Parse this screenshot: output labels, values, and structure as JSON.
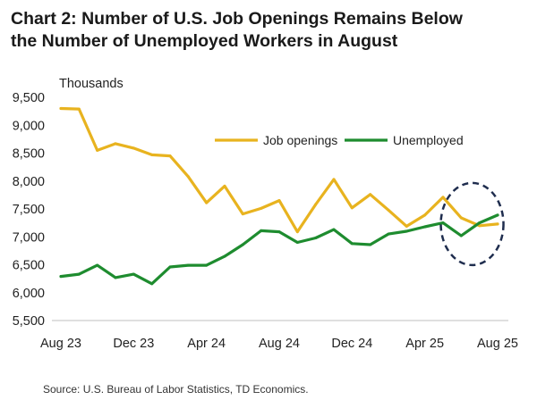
{
  "title": {
    "line1": "Chart 2: Number of U.S. Job Openings Remains Below",
    "line2": "the Number of Unemployed Workers in August"
  },
  "source": "Source: U.S. Bureau of Labor Statistics, TD Economics.",
  "chart_data": {
    "type": "line",
    "ylabel": "Thousands",
    "ylim": [
      5500,
      9500
    ],
    "yticks": [
      5500,
      6000,
      6500,
      7000,
      7500,
      8000,
      8500,
      9000,
      9500
    ],
    "ytick_labels": [
      "5,500",
      "6,000",
      "6,500",
      "7,000",
      "7,500",
      "8,000",
      "8,500",
      "9,000",
      "9,500"
    ],
    "x": [
      "Aug 23",
      "Sep 23",
      "Oct 23",
      "Nov 23",
      "Dec 23",
      "Jan 24",
      "Feb 24",
      "Mar 24",
      "Apr 24",
      "May 24",
      "Jun 24",
      "Jul 24",
      "Aug 24",
      "Sep 24",
      "Oct 24",
      "Nov 24",
      "Dec 24",
      "Jan 25",
      "Feb 25",
      "Mar 25",
      "Apr 25",
      "May 25",
      "Jun 25",
      "Jul 25",
      "Aug 25"
    ],
    "xtick_labels": [
      "Aug 23",
      "Dec 23",
      "Apr 24",
      "Aug 24",
      "Dec 24",
      "Apr 25",
      "Aug 25"
    ],
    "xtick_indices": [
      0,
      4,
      8,
      12,
      16,
      20,
      24
    ],
    "grid": false,
    "legend_position": "upper-right",
    "annotation": "dashed circle around Jun 25 - Aug 25",
    "series": [
      {
        "name": "Job openings",
        "color": "#E8B31F",
        "values": [
          9300,
          9290,
          8550,
          8670,
          8590,
          8470,
          8450,
          8080,
          7610,
          7910,
          7410,
          7510,
          7650,
          7090,
          7580,
          8030,
          7520,
          7760,
          7480,
          7190,
          7390,
          7710,
          7340,
          7200,
          7230
        ]
      },
      {
        "name": "Unemployed",
        "color": "#1E8C2F",
        "values": [
          6290,
          6330,
          6490,
          6270,
          6330,
          6160,
          6460,
          6490,
          6490,
          6650,
          6860,
          7110,
          7090,
          6900,
          6980,
          7130,
          6880,
          6860,
          7050,
          7100,
          7180,
          7250,
          7020,
          7250,
          7390
        ]
      }
    ]
  }
}
